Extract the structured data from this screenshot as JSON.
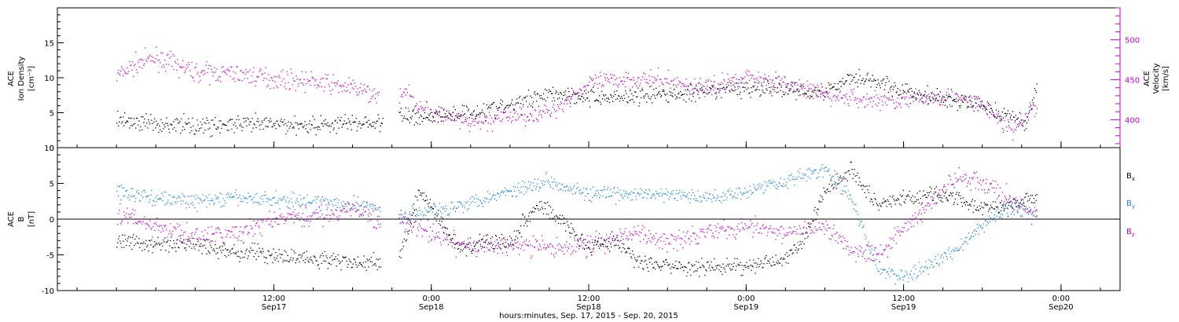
{
  "chart_data": [
    {
      "type": "scatter",
      "panel": "top",
      "ylabel_left": [
        "ACE",
        "Ion Density",
        "[cm⁻³]"
      ],
      "ylabel_right": [
        "ACE",
        "Velocity",
        "[km/s]"
      ],
      "ylim_left": [
        0,
        20
      ],
      "yticks_left": [
        0,
        5,
        10,
        15
      ],
      "ylim_right": [
        365,
        540
      ],
      "yticks_right": [
        400,
        450,
        500
      ],
      "right_axis_color": "#cc00cc",
      "series": [
        {
          "axis": "left",
          "color": "#000000",
          "x": [
            0,
            3,
            6,
            9,
            12,
            15,
            18,
            20.2,
            21.6,
            24,
            27,
            30,
            33,
            35,
            36.5,
            40,
            44,
            47,
            48,
            51,
            54,
            56,
            57.2,
            60,
            63,
            66,
            69.3,
            70.2
          ],
          "y": [
            4,
            3.5,
            3.2,
            3.3,
            3.4,
            3.3,
            3.6,
            3.6,
            4.5,
            4.5,
            5.2,
            6,
            8,
            7.5,
            7.2,
            7.5,
            7.8,
            8.5,
            8.6,
            8.5,
            8,
            10.2,
            10,
            8,
            7,
            6,
            3.5,
            9.5
          ]
        },
        {
          "axis": "right",
          "color": "#cc00cc",
          "x": [
            0,
            1.5,
            3,
            6,
            9,
            12,
            15,
            18,
            19.9,
            21.6,
            24,
            27,
            30,
            33,
            36,
            39,
            42,
            45,
            48,
            51,
            54,
            57,
            60,
            63,
            66,
            68.3,
            69.5,
            70.2
          ],
          "y": [
            455,
            470,
            478,
            460,
            458,
            452,
            448,
            440,
            430,
            435,
            410,
            395,
            405,
            410,
            445,
            452,
            448,
            440,
            455,
            445,
            432,
            425,
            425,
            430,
            420,
            385,
            410,
            418
          ]
        }
      ]
    },
    {
      "type": "scatter",
      "panel": "bottom",
      "ylabel": [
        "ACE",
        "B",
        "[nT]"
      ],
      "ylim": [
        -10,
        10
      ],
      "yticks": [
        -10,
        -5,
        0,
        5,
        10
      ],
      "zero_line": true,
      "legend": {
        "placement": "right",
        "entries": [
          {
            "label_main": "B",
            "label_sub": "x",
            "color": "#000000"
          },
          {
            "label_main": "B",
            "label_sub": "y",
            "color": "#1e88e5"
          },
          {
            "label_main": "B",
            "label_sub": "z",
            "color": "#cc00cc"
          }
        ]
      },
      "series": [
        {
          "name": "Bx",
          "color": "#000000",
          "x": [
            0,
            3,
            6,
            9,
            12,
            15,
            18,
            20,
            21.6,
            23,
            24,
            26,
            28,
            30,
            32,
            34,
            36,
            38,
            40,
            42,
            44,
            46,
            48,
            50,
            52,
            54,
            56,
            58,
            60,
            62,
            64,
            66,
            68,
            70.2
          ],
          "y": [
            -3,
            -3.5,
            -3.5,
            -4.5,
            -5,
            -5.5,
            -6,
            -6,
            -5,
            3.5,
            2,
            -4,
            -3,
            -3,
            2,
            0,
            -4,
            -3,
            -6,
            -6.5,
            -7,
            -6.5,
            -6.5,
            -6,
            -4,
            4,
            7,
            2,
            3,
            3.5,
            3,
            1.5,
            2,
            3
          ]
        },
        {
          "name": "By",
          "color": "#1e88e5",
          "x": [
            0,
            3,
            6,
            9,
            12,
            15,
            18,
            20,
            21.6,
            24,
            27,
            30,
            33,
            36,
            39,
            42,
            45,
            48,
            51,
            54,
            56,
            58,
            60,
            62,
            64,
            66,
            68,
            70.2
          ],
          "y": [
            4,
            3,
            2.5,
            3,
            2.8,
            2.5,
            2,
            1.5,
            0.5,
            1,
            2.5,
            4,
            5.5,
            3.5,
            3.5,
            3.5,
            3,
            4,
            5.5,
            7,
            3,
            -7,
            -8,
            -6.5,
            -4,
            -1,
            2,
            1
          ]
        },
        {
          "name": "Bz",
          "color": "#cc00cc",
          "x": [
            0,
            3,
            6,
            9,
            12,
            15,
            18,
            20,
            21.6,
            24,
            27,
            30,
            33,
            36,
            39,
            42,
            45,
            48,
            51,
            54,
            56,
            58,
            60,
            62,
            64,
            66,
            68,
            70.2
          ],
          "y": [
            1,
            -1,
            -2.5,
            -2,
            0,
            0.5,
            1.5,
            0,
            0,
            -2,
            -4,
            -3.5,
            -4,
            -3.5,
            -2,
            -3,
            -1.5,
            -1,
            -2,
            -1,
            -4,
            -5,
            -1,
            2,
            6,
            5,
            3,
            0
          ]
        }
      ]
    }
  ],
  "x_axis": {
    "hours_range": [
      -4.5,
      76.5
    ],
    "ticks": [
      {
        "hour": 12,
        "top": "12:00",
        "bottom": "Sep17"
      },
      {
        "hour": 24,
        "top": "0:00",
        "bottom": "Sep18"
      },
      {
        "hour": 36,
        "top": "12:00",
        "bottom": "Sep18"
      },
      {
        "hour": 48,
        "top": "0:00",
        "bottom": "Sep19"
      },
      {
        "hour": 60,
        "top": "12:00",
        "bottom": "Sep19"
      },
      {
        "hour": 72,
        "top": "0:00",
        "bottom": "Sep20"
      }
    ],
    "label": "hours:minutes, Sep. 17, 2015 - Sep. 20, 2015"
  }
}
